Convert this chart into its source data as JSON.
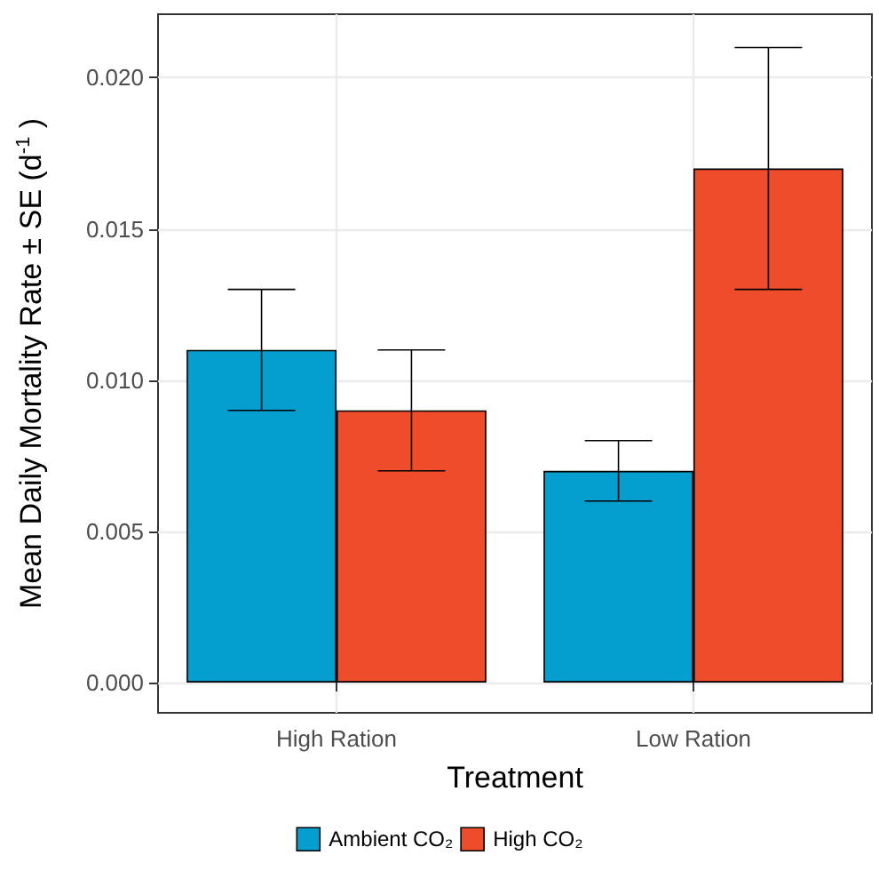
{
  "chart_data": {
    "type": "bar",
    "xlabel": "Treatment",
    "ylabel": "Mean Daily Mortality Rate ± SE (d$^{-1}$ )",
    "categories": [
      "High Ration",
      "Low Ration"
    ],
    "series": [
      {
        "name": "Ambient CO₂",
        "color": "#049fcf",
        "values": [
          0.011,
          0.007
        ],
        "errors": [
          [
            0.009,
            0.013
          ],
          [
            0.006,
            0.008
          ]
        ]
      },
      {
        "name": "High CO₂",
        "color": "#ef4c2b",
        "values": [
          0.009,
          0.017
        ],
        "errors": [
          [
            0.007,
            0.011
          ],
          [
            0.013,
            0.021
          ]
        ]
      }
    ],
    "ylim": [
      -0.001,
      0.0221
    ],
    "yticks": [
      {
        "value": 0,
        "label": "0.000"
      },
      {
        "value": 0.005,
        "label": "0.005"
      },
      {
        "value": 0.01,
        "label": "0.010"
      },
      {
        "value": 0.015,
        "label": "0.015"
      },
      {
        "value": 0.02,
        "label": "0.020"
      }
    ],
    "grid": true,
    "legend": "bottom"
  }
}
